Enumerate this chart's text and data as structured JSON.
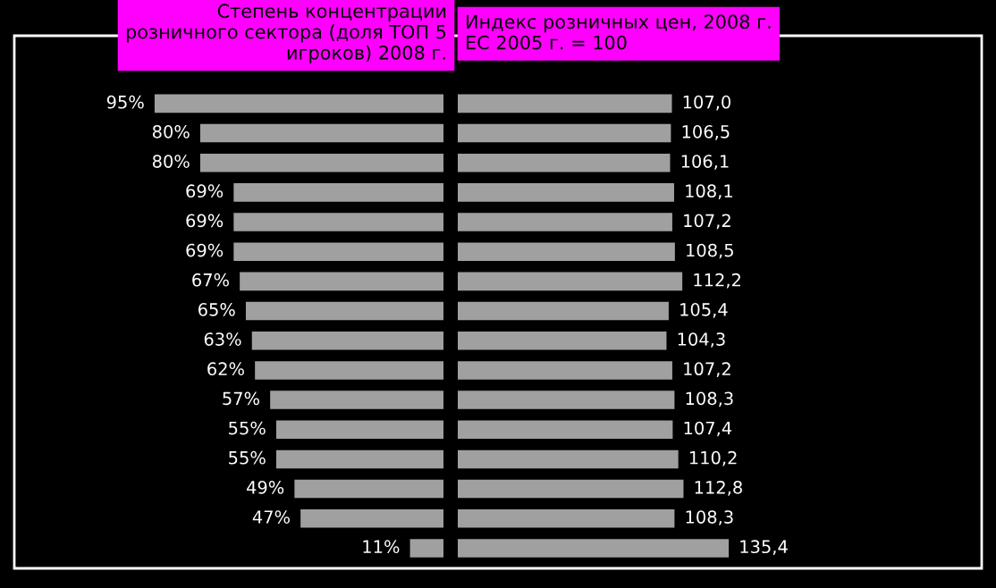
{
  "chart_data": [
    {
      "type": "bar",
      "orientation": "horizontal",
      "title": "Степень концентрации\nрозничного сектора (доля ТОП 5\nигроков) 2008 г.",
      "categories": [
        null,
        null,
        null,
        null,
        null,
        null,
        null,
        null,
        null,
        null,
        null,
        null,
        null,
        null,
        null,
        null
      ],
      "values": [
        95,
        80,
        80,
        69,
        69,
        69,
        67,
        65,
        63,
        62,
        57,
        55,
        55,
        49,
        47,
        11
      ],
      "value_labels": [
        "95%",
        "80%",
        "80%",
        "69%",
        "69%",
        "69%",
        "67%",
        "65%",
        "63%",
        "62%",
        "57%",
        "55%",
        "55%",
        "49%",
        "47%",
        "11%"
      ],
      "color": "#a0a0a0",
      "grid": false,
      "legend": false
    },
    {
      "type": "bar",
      "orientation": "horizontal",
      "title": "Индекс розничных цен, 2008 г.\nЕС 2005 г. = 100",
      "categories": [
        null,
        null,
        null,
        null,
        null,
        null,
        null,
        null,
        null,
        null,
        null,
        null,
        null,
        null,
        null,
        null
      ],
      "values": [
        107.0,
        106.5,
        106.1,
        108.1,
        107.2,
        108.5,
        112.2,
        105.4,
        104.3,
        107.2,
        108.3,
        107.4,
        110.2,
        112.8,
        108.3,
        135.4
      ],
      "value_labels": [
        "107,0",
        "106,5",
        "106,1",
        "108,1",
        "107,2",
        "108,5",
        "112,2",
        "105,4",
        "104,3",
        "107,2",
        "108,3",
        "107,4",
        "110,2",
        "112,8",
        "108,3",
        "135,4"
      ],
      "color": "#a0a0a0",
      "grid": false,
      "legend": false
    }
  ]
}
